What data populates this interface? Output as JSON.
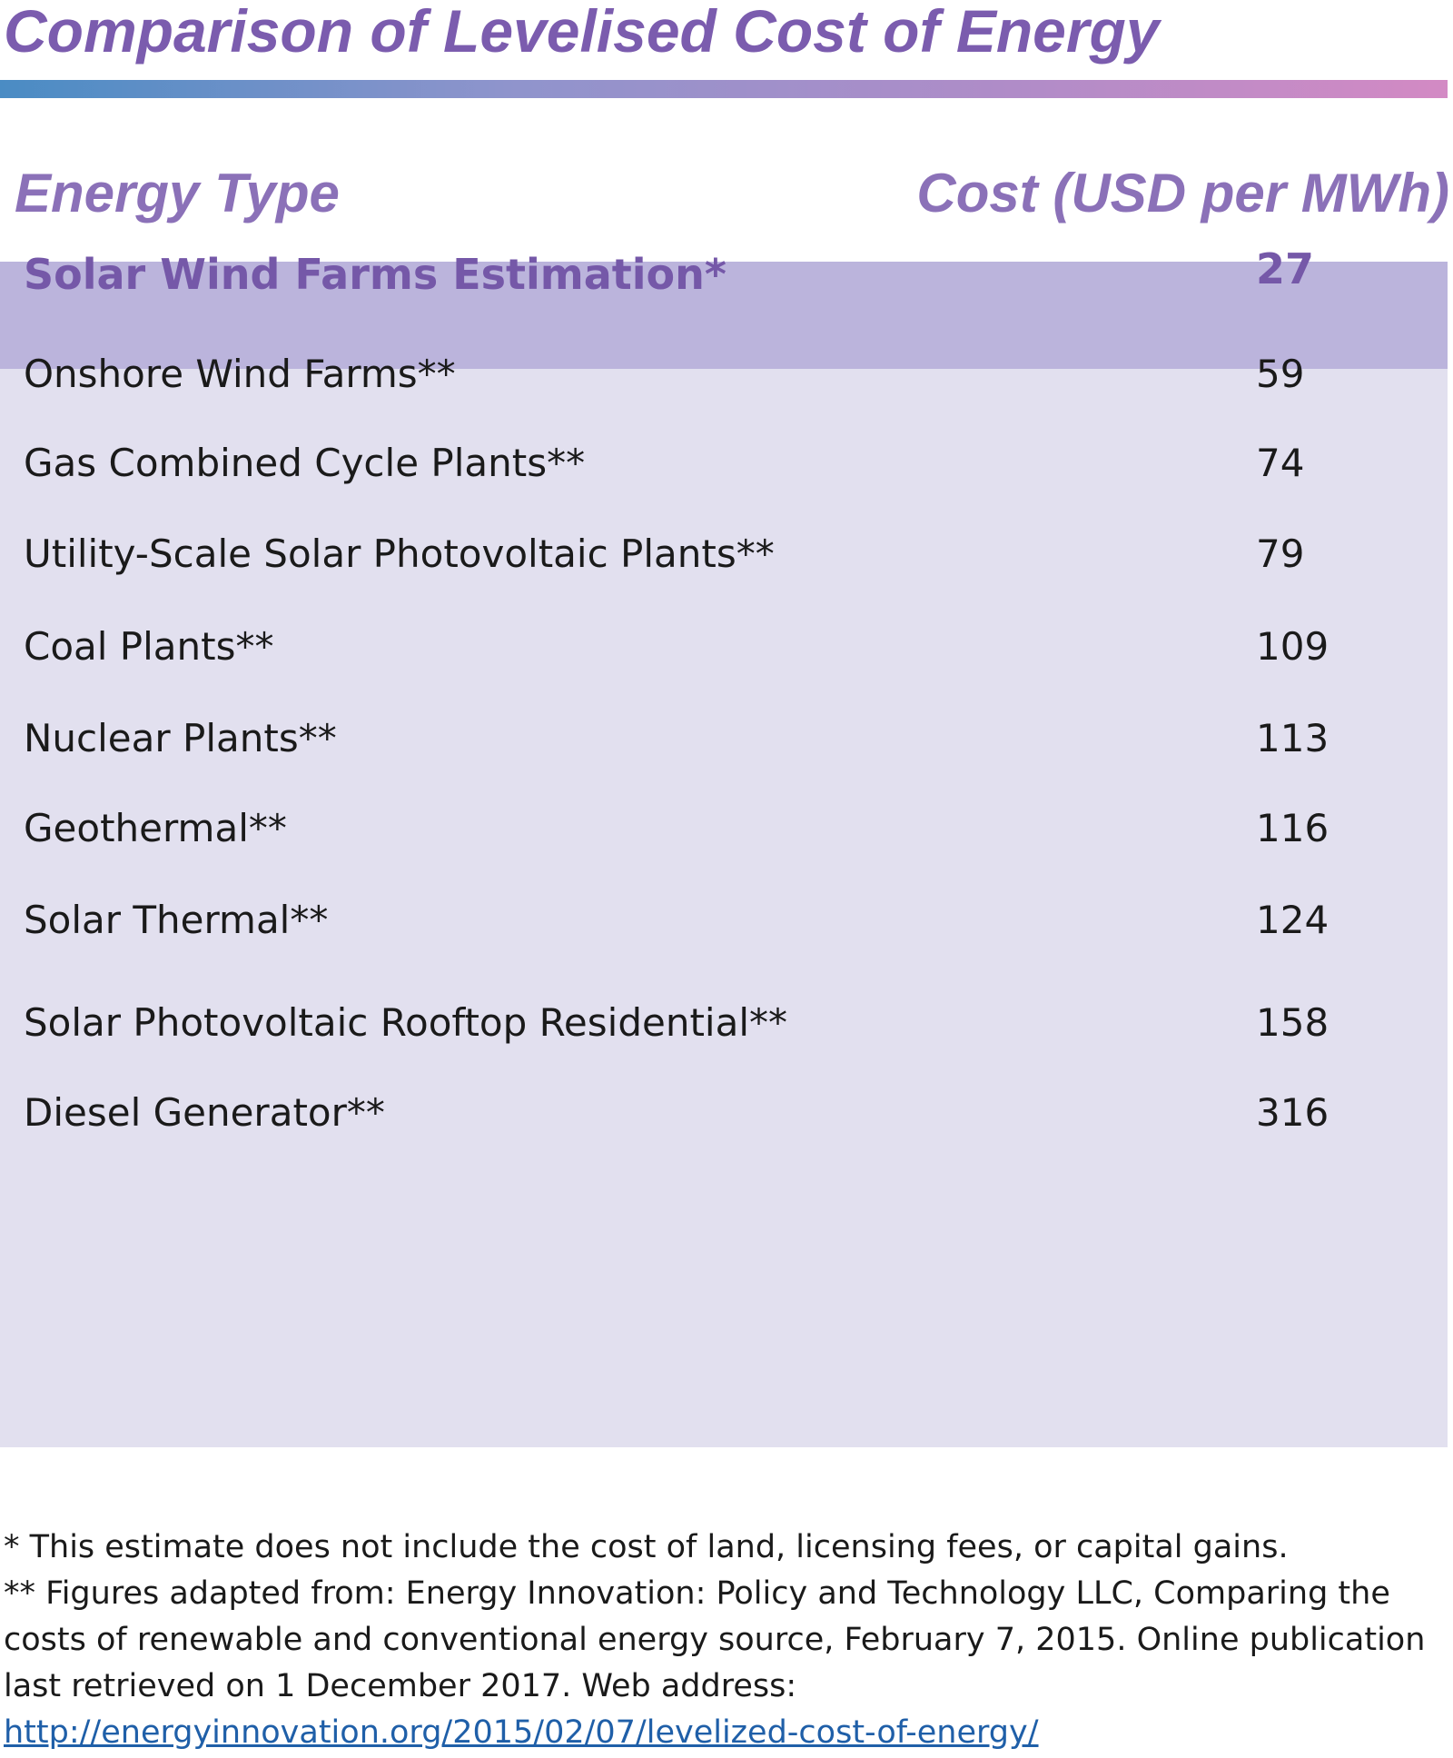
{
  "chart_data": {
    "type": "table",
    "title": "Comparison of Levelised Cost of Energy",
    "columns": [
      "Energy Type",
      "Cost (USD per MWh)"
    ],
    "rows": [
      {
        "label": "Solar Wind Farms Estimation*",
        "value": 27,
        "highlighted": true
      },
      {
        "label": "Onshore Wind Farms**",
        "value": 59,
        "highlighted": false
      },
      {
        "label": "Gas Combined Cycle Plants**",
        "value": 74,
        "highlighted": false
      },
      {
        "label": "Utility-Scale Solar Photovoltaic Plants**",
        "value": 79,
        "highlighted": false
      },
      {
        "label": "Coal Plants**",
        "value": 109,
        "highlighted": false
      },
      {
        "label": "Nuclear Plants**",
        "value": 113,
        "highlighted": false
      },
      {
        "label": "Geothermal**",
        "value": 116,
        "highlighted": false
      },
      {
        "label": "Solar Thermal**",
        "value": 124,
        "highlighted": false
      },
      {
        "label": "Solar Photovoltaic Rooftop Residential**",
        "value": 158,
        "highlighted": false
      },
      {
        "label": "Diesel Generator**",
        "value": 316,
        "highlighted": false
      }
    ],
    "footnotes": {
      "single": "* This estimate does not include the cost of land, licensing fees, or capital gains.",
      "double_text": "** Figures adapted from: Energy Innovation: Policy and Technology LLC, Comparing the costs of renewable and conventional energy source, February 7, 2015. Online publication last retrieved on 1 December 2017. Web address: ",
      "double_url": "http://energyinnovation.org/2015/02/07/levelized-cost-of-energy/"
    }
  },
  "colors": {
    "title": "#7b5cae",
    "header": "#8b71b8",
    "highlight_row": "#bbb4dc",
    "table_background": "#e2e0ef",
    "link": "#1f5fa8"
  }
}
